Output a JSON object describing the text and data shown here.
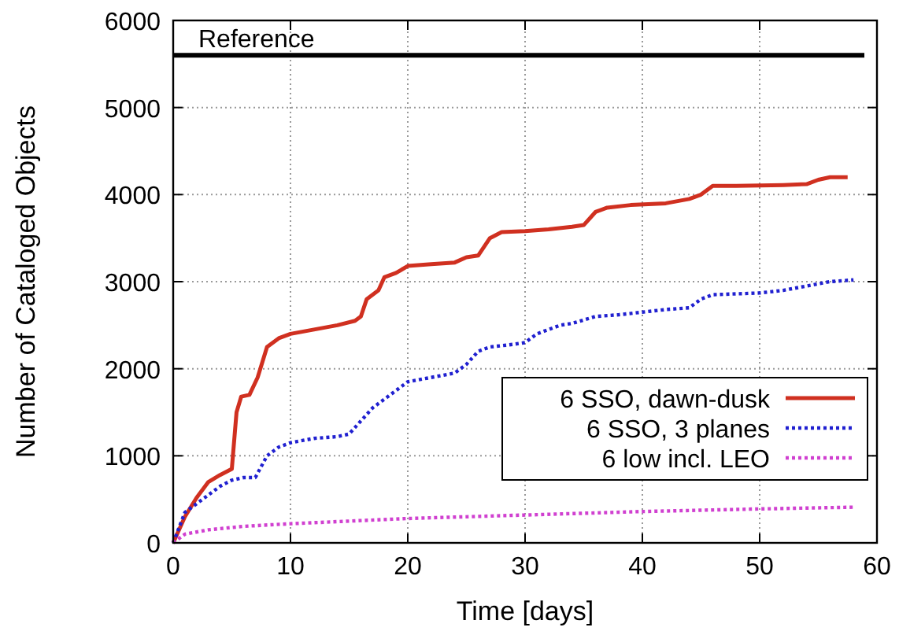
{
  "chart_data": {
    "type": "line",
    "xlabel": "Time [days]",
    "ylabel": "Number of Cataloged Objects",
    "xlim": [
      0,
      60
    ],
    "ylim": [
      0,
      6000
    ],
    "xticks": [
      0,
      10,
      20,
      30,
      40,
      50,
      60
    ],
    "yticks": [
      0,
      1000,
      2000,
      3000,
      4000,
      5000,
      6000
    ],
    "grid": true,
    "legend": "bottom right",
    "ref_lines": [
      {
        "axis": "y",
        "value": 5600,
        "label": "Reference",
        "color": "#000000"
      }
    ],
    "series": [
      {
        "name": "6 SSO, dawn-dusk",
        "color": "#d03020",
        "line_style": "solid",
        "x": [
          0,
          1,
          2,
          3,
          4,
          5,
          5.4,
          5.8,
          6.5,
          7.2,
          8,
          9,
          10,
          12,
          14,
          15.5,
          16,
          16.5,
          17.5,
          18,
          19,
          20,
          22,
          24,
          25,
          26,
          27,
          28,
          30,
          32,
          34,
          35,
          36,
          37,
          39,
          42,
          44,
          45,
          46,
          48,
          52,
          54,
          55,
          56,
          57.5
        ],
        "values": [
          0,
          300,
          520,
          700,
          780,
          850,
          1500,
          1680,
          1700,
          1900,
          2250,
          2350,
          2400,
          2450,
          2500,
          2550,
          2600,
          2800,
          2900,
          3050,
          3100,
          3180,
          3200,
          3220,
          3280,
          3300,
          3500,
          3570,
          3580,
          3600,
          3630,
          3650,
          3800,
          3850,
          3880,
          3900,
          3950,
          4000,
          4100,
          4100,
          4110,
          4120,
          4170,
          4200,
          4200
        ]
      },
      {
        "name": "6 SSO, 3 planes",
        "color": "#2020d0",
        "line_style": "dotted",
        "x": [
          0,
          1,
          2,
          3,
          4,
          5,
          6,
          7,
          8,
          9,
          10,
          12,
          14,
          15,
          16,
          17,
          18,
          19,
          20,
          22,
          24,
          25,
          26,
          27,
          29,
          30,
          31,
          32,
          33,
          34,
          36,
          38,
          40,
          42,
          44,
          45,
          46,
          50,
          52,
          54,
          56,
          58
        ],
        "values": [
          0,
          350,
          450,
          550,
          650,
          720,
          750,
          750,
          1000,
          1100,
          1150,
          1200,
          1220,
          1250,
          1400,
          1550,
          1650,
          1750,
          1850,
          1900,
          1950,
          2050,
          2200,
          2250,
          2280,
          2300,
          2400,
          2450,
          2500,
          2520,
          2600,
          2620,
          2650,
          2680,
          2700,
          2800,
          2850,
          2870,
          2900,
          2950,
          3000,
          3020
        ]
      },
      {
        "name": "6 low incl. LEO",
        "color": "#d040d0",
        "line_style": "dotted",
        "x": [
          0,
          1,
          3,
          6,
          10,
          15,
          20,
          30,
          40,
          50,
          58
        ],
        "values": [
          0,
          100,
          150,
          190,
          220,
          250,
          280,
          320,
          360,
          390,
          410
        ]
      }
    ]
  }
}
